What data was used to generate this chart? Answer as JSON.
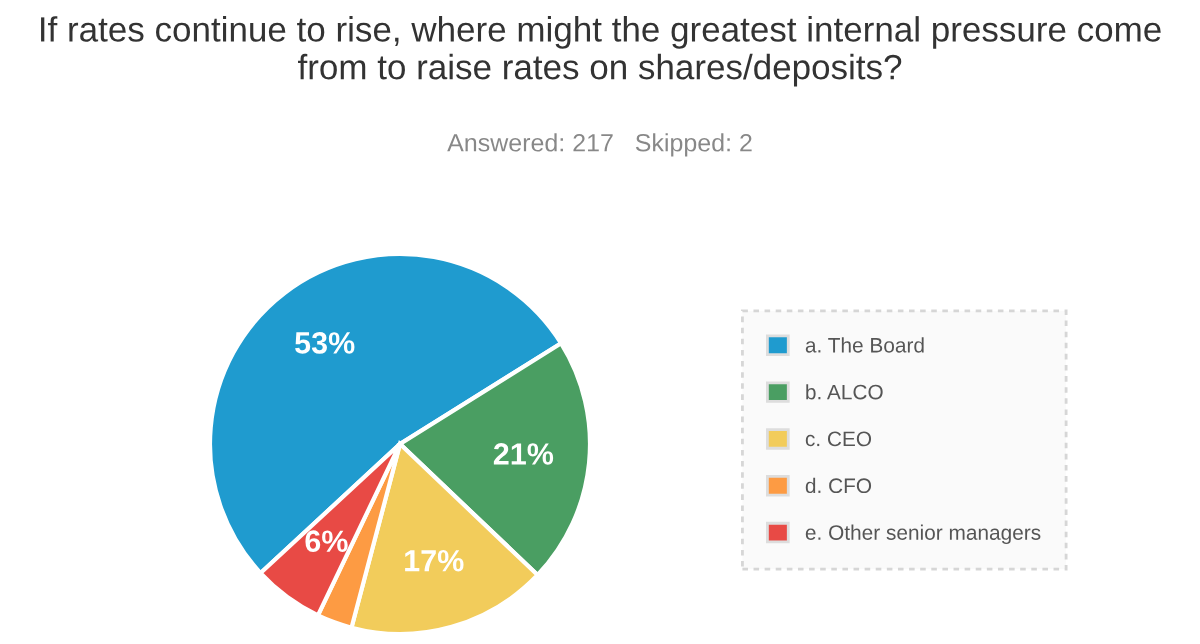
{
  "chart_data": {
    "type": "pie",
    "title": "If rates continue to rise, where might the greatest internal pressure come from to raise rates on shares/deposits?",
    "subtitle": "Answered: 217   Skipped: 2",
    "categories": [
      "a. The Board",
      "b. ALCO",
      "c. CEO",
      "d. CFO",
      "e. Other senior managers"
    ],
    "values": [
      53,
      21,
      17,
      3,
      6
    ],
    "colors": [
      "#1f9bcf",
      "#4a9e62",
      "#f2cc5b",
      "#fd9b43",
      "#e84a45"
    ],
    "value_labels": [
      "53%",
      "21%",
      "17%",
      null,
      "6%"
    ],
    "legend": "right"
  }
}
